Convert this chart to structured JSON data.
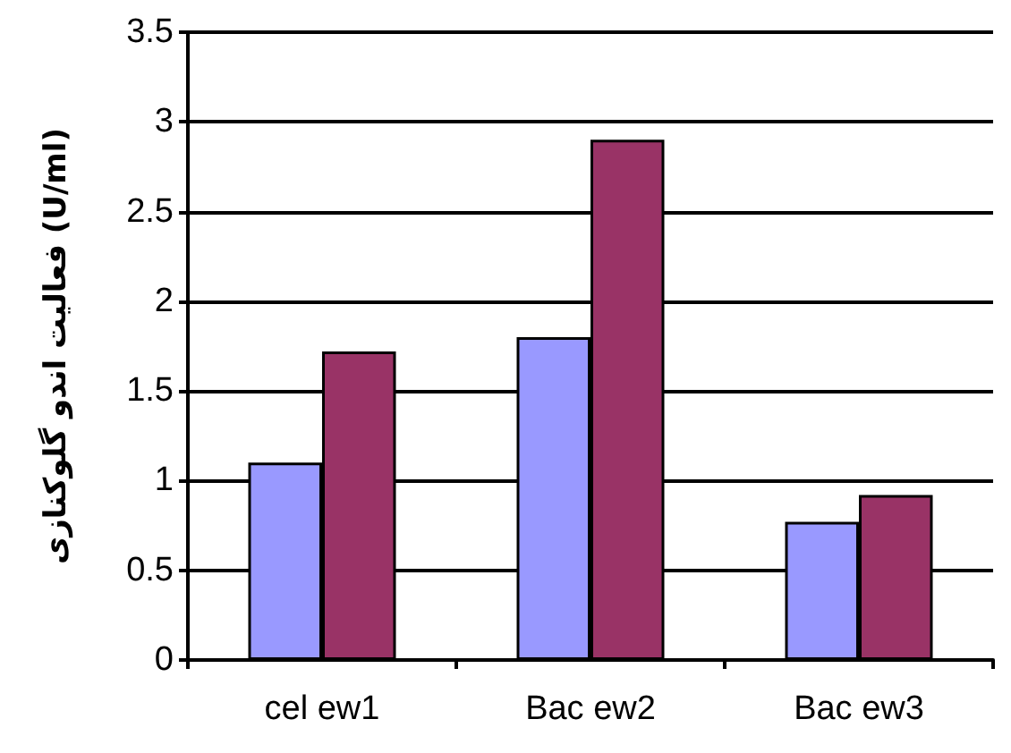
{
  "chart_data": {
    "type": "bar",
    "ylabel": "فعالیت اندو گلوکنازی (U/ml)",
    "categories": [
      "cel ew1",
      "Bac ew2",
      "Bac ew3"
    ],
    "series": [
      {
        "color": "#9999ff",
        "values": [
          1.1,
          1.8,
          0.77
        ]
      },
      {
        "color": "#993366",
        "values": [
          1.72,
          2.9,
          0.92
        ]
      }
    ],
    "ylim": [
      0,
      3.5
    ],
    "yticks": [
      0,
      0.5,
      1,
      1.5,
      2,
      2.5,
      3,
      3.5
    ],
    "grid": "y"
  }
}
